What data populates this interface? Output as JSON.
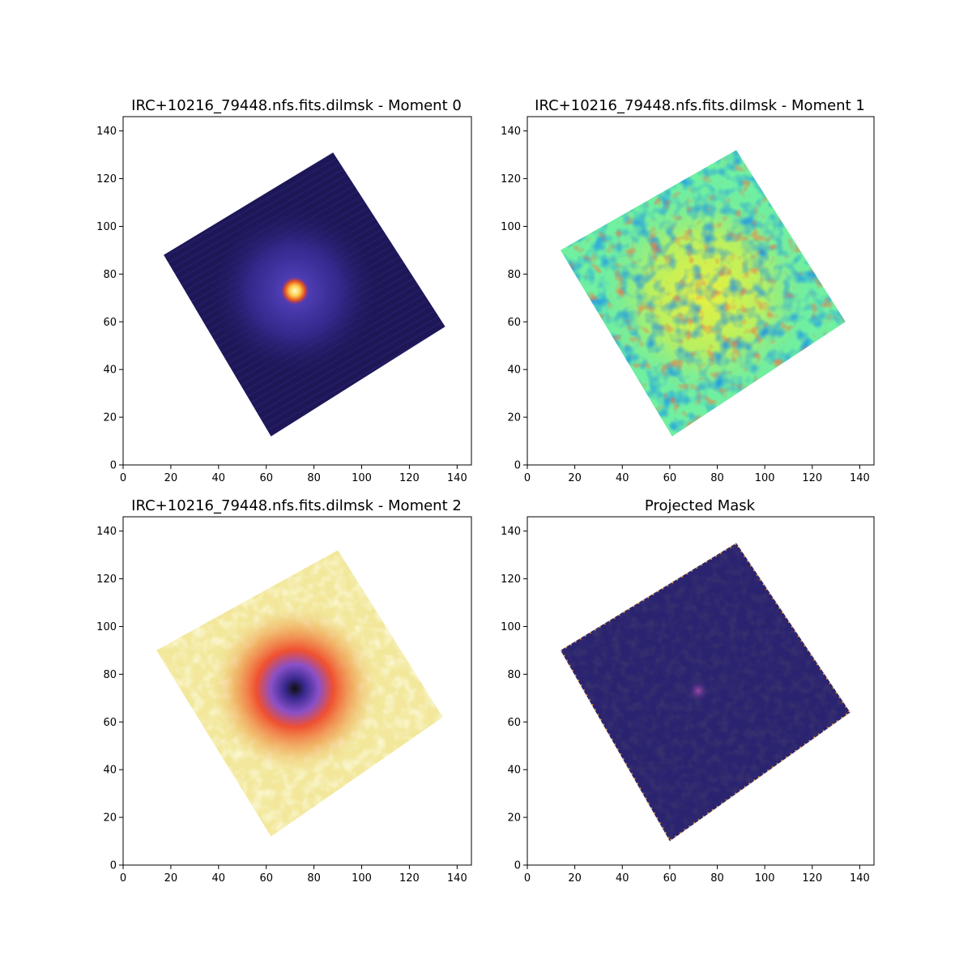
{
  "figure": {
    "layout": "2x2 grid of image panels"
  },
  "chart_data": [
    {
      "type": "heatmap",
      "title": "IRC+10216_79448.nfs.fits.dilmsk - Moment 0",
      "colormap": "CMRmap",
      "xlim": [
        0,
        146
      ],
      "ylim": [
        0,
        146
      ],
      "xticks": [
        "0",
        "20",
        "40",
        "60",
        "80",
        "100",
        "120",
        "140"
      ],
      "yticks": [
        "0",
        "20",
        "40",
        "60",
        "80",
        "100",
        "120",
        "140"
      ],
      "feature": "bright compact peak near (72, 73) on dark rotated square field",
      "colors": {
        "background": "#1b1550",
        "halo": "#4a3ab0",
        "peak": "#fff3a0",
        "peak_mid": "#f07a20"
      }
    },
    {
      "type": "heatmap",
      "title": "IRC+10216_79448.nfs.fits.dilmsk - Moment 1",
      "colormap": "jet",
      "xlim": [
        0,
        146
      ],
      "ylim": [
        0,
        146
      ],
      "xticks": [
        "0",
        "20",
        "40",
        "60",
        "80",
        "100",
        "120",
        "140"
      ],
      "yticks": [
        "0",
        "20",
        "40",
        "60",
        "80",
        "100",
        "120",
        "140"
      ],
      "feature": "noisy velocity field, yellow-green center, blue/red speckle near edges",
      "colors": {
        "center": "#d8f040",
        "mid": "#70f0a0",
        "low": "#0030ff",
        "high": "#e01010"
      }
    },
    {
      "type": "heatmap",
      "title": "IRC+10216_79448.nfs.fits.dilmsk - Moment 2",
      "colormap": "CMRmap_r",
      "xlim": [
        0,
        146
      ],
      "ylim": [
        0,
        146
      ],
      "xticks": [
        "0",
        "20",
        "40",
        "60",
        "80",
        "100",
        "120",
        "140"
      ],
      "yticks": [
        "0",
        "20",
        "40",
        "60",
        "80",
        "100",
        "120",
        "140"
      ],
      "feature": "yellow field with orange-red ring and dark center near (72, 74)",
      "colors": {
        "outer": "#f2e79a",
        "ring": "#f0602a",
        "inner": "#6a40c0",
        "core": "#101010"
      }
    },
    {
      "type": "heatmap",
      "title": "Projected Mask",
      "colormap": "CMRmap",
      "xlim": [
        0,
        146
      ],
      "ylim": [
        0,
        146
      ],
      "xticks": [
        "0",
        "20",
        "40",
        "60",
        "80",
        "100",
        "120",
        "140"
      ],
      "yticks": [
        "0",
        "20",
        "40",
        "60",
        "80",
        "100",
        "120",
        "140"
      ],
      "feature": "dark blue rotated square with bright dotted edge and faint spot near (72, 73)",
      "colors": {
        "fill": "#2a2370",
        "edge": "#f0a040",
        "spot": "#7a3aa0"
      }
    }
  ]
}
